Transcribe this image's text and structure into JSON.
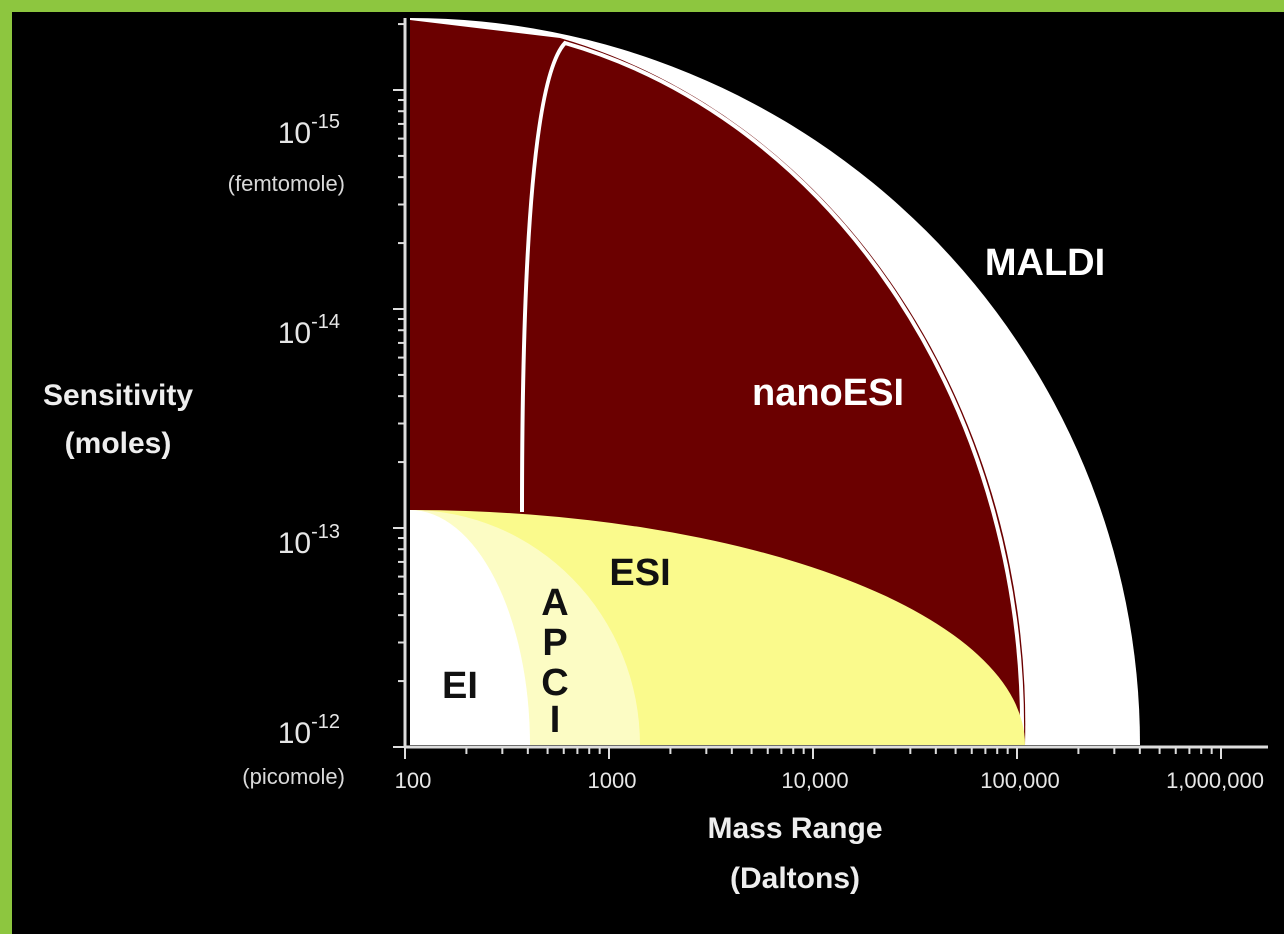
{
  "y_axis": {
    "title": [
      "Sensitivity",
      "(moles)"
    ],
    "ticks": [
      {
        "base": "10",
        "exp": "-15",
        "note": "(femtomole)"
      },
      {
        "base": "10",
        "exp": "-14"
      },
      {
        "base": "10",
        "exp": "-13"
      },
      {
        "base": "10",
        "exp": "-12",
        "note": "(picomole)"
      }
    ]
  },
  "x_axis": {
    "title": [
      "Mass Range",
      "(Daltons)"
    ],
    "ticks": [
      "100",
      "1000",
      "10,000",
      "100,000",
      "1,000,000"
    ]
  },
  "regions": {
    "maldi": "MALDI",
    "nano_esi": "nanoESI",
    "esi": "ESI",
    "apci": [
      "A",
      "P",
      "C",
      "I"
    ],
    "ei": "EI"
  }
}
